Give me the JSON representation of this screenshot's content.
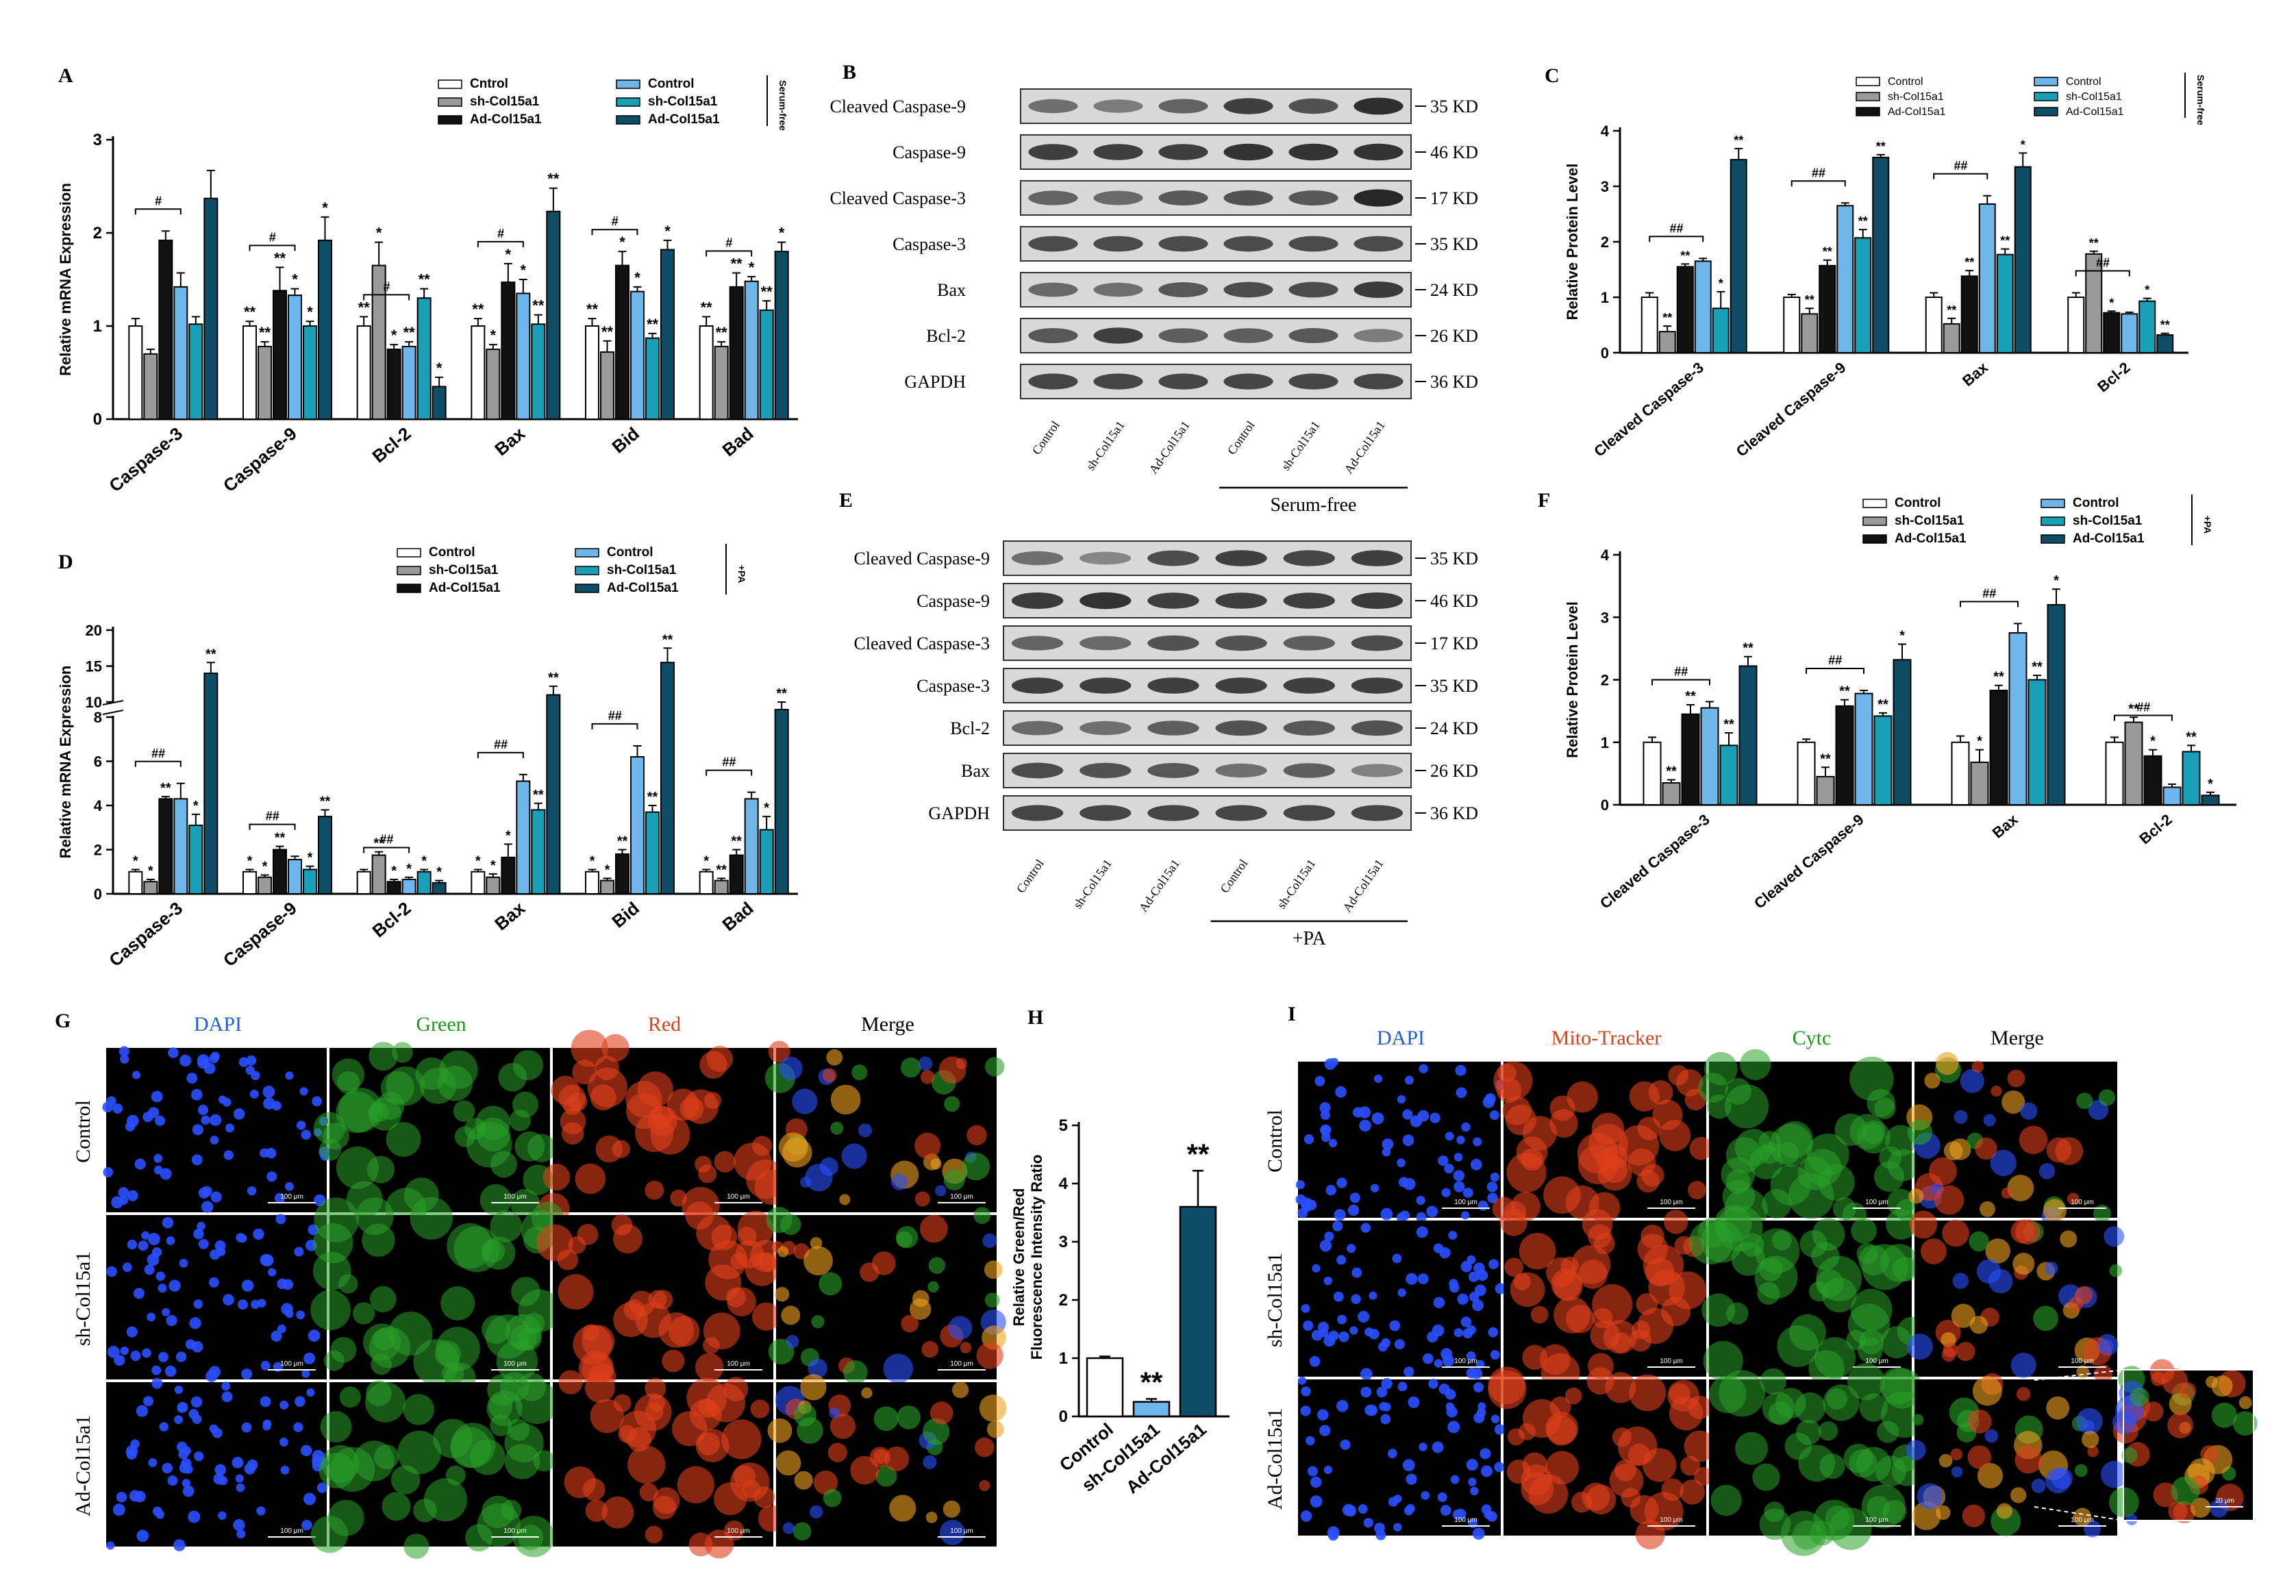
{
  "colors": {
    "white": "#ffffff",
    "gray": "#9a9a9a",
    "black": "#111111",
    "lightblue": "#6fb6ea",
    "teal": "#1aa0b6",
    "darkteal": "#0f4d66"
  },
  "chartA": {
    "letter": "A",
    "ylabel": "Relative mRNA Expression",
    "ylim": [
      0,
      3
    ],
    "yticks": [
      "0",
      "1",
      "2",
      "3"
    ],
    "legend": [
      "Cntrol",
      "sh-Col15a1",
      "Ad-Col15a1",
      "Control",
      "sh-Col15a1",
      "Ad-Col15a1"
    ],
    "bracket": "Serum-free"
  },
  "chartC": {
    "letter": "C",
    "ylabel": "Relative Protein Level",
    "ylim": [
      0,
      4
    ],
    "yticks": [
      "0",
      "1",
      "2",
      "3",
      "4"
    ],
    "legend": [
      "Control",
      "sh-Col15a1",
      "Ad-Col15a1",
      "Control",
      "sh-Col15a1",
      "Ad-Col15a1"
    ],
    "bracket": "Serum-free"
  },
  "chartD": {
    "letter": "D",
    "ylabel": "Relative mRNA Expression",
    "yticks_low": [
      "0",
      "2",
      "4",
      "6",
      "8"
    ],
    "yticks_high": [
      "10",
      "15",
      "20"
    ],
    "legend": [
      "Control",
      "sh-Col15a1",
      "Ad-Col15a1",
      "Control",
      "sh-Col15a1",
      "Ad-Col15a1"
    ],
    "bracket": "+PA"
  },
  "chartF": {
    "letter": "F",
    "ylabel": "Relative Protein Level",
    "ylim": [
      0,
      4
    ],
    "yticks": [
      "0",
      "1",
      "2",
      "3",
      "4"
    ],
    "legend": [
      "Control",
      "sh-Col15a1",
      "Ad-Col15a1",
      "Control",
      "sh-Col15a1",
      "Ad-Col15a1"
    ],
    "bracket": "+PA"
  },
  "chartH": {
    "letter": "H",
    "ylabel1": "Relative Green/Red",
    "ylabel2": "Fluorescence Intensity Ratio",
    "ylim": [
      0,
      5
    ],
    "yticks": [
      "0",
      "1",
      "2",
      "3",
      "4",
      "5"
    ]
  },
  "blotB": {
    "letter": "B",
    "rows": [
      "Cleaved Caspase-9",
      "Caspase-9",
      "Cleaved Caspase-3",
      "Caspase-3",
      "Bax",
      "Bcl-2",
      "GAPDH"
    ],
    "sizes": [
      "35 KD",
      "46 KD",
      "17 KD",
      "35 KD",
      "24 KD",
      "26 KD",
      "36 KD"
    ],
    "lanes": [
      "Control",
      "sh-Col15a1",
      "Ad-Col15a1",
      "Control",
      "sh-Col15a1",
      "Ad-Col15a1"
    ],
    "group": "Serum-free"
  },
  "blotE": {
    "letter": "E",
    "rows": [
      "Cleaved Caspase-9",
      "Caspase-9",
      "Cleaved Caspase-3",
      "Caspase-3",
      "Bcl-2",
      "Bax",
      "GAPDH"
    ],
    "sizes": [
      "35 KD",
      "46 KD",
      "17 KD",
      "35 KD",
      "24 KD",
      "26 KD",
      "36 KD"
    ],
    "lanes": [
      "Control",
      "sh-Col15a1",
      "Ad-Col15a1",
      "Control",
      "sh-Col15a1",
      "Ad-Col15a1"
    ],
    "group": "+PA"
  },
  "panelG": {
    "letter": "G",
    "columns": [
      "DAPI",
      "Green",
      "Red",
      "Merge"
    ],
    "rows": [
      "Control",
      "sh-Col15a1",
      "Ad-Col15a1"
    ],
    "scalebar": "100 μm"
  },
  "panelI": {
    "letter": "I",
    "columns": [
      "DAPI",
      "Mito-Tracker",
      "Cytc",
      "Merge"
    ],
    "rows": [
      "Control",
      "sh-Col15a1",
      "Ad-Col15a1"
    ],
    "scalebar": "100 μm",
    "inset_scalebar": "20 μm"
  },
  "chart_data": [
    {
      "type": "bar",
      "panel": "A",
      "categories": [
        "Caspase-3",
        "Caspase-9",
        "Bcl-2",
        "Bax",
        "Bid",
        "Bad"
      ],
      "ylabel": "Relative mRNA Expression",
      "ylim": [
        0,
        3
      ],
      "series": [
        {
          "name": "Cntrol",
          "values": [
            1.0,
            1.0,
            1.0,
            1.0,
            1.0,
            1.0
          ],
          "err": [
            0.08,
            0.05,
            0.1,
            0.08,
            0.08,
            0.1
          ]
        },
        {
          "name": "sh-Col15a1",
          "values": [
            0.7,
            0.78,
            1.65,
            0.75,
            0.72,
            0.78
          ],
          "err": [
            0.05,
            0.05,
            0.25,
            0.05,
            0.12,
            0.05
          ]
        },
        {
          "name": "Ad-Col15a1",
          "values": [
            1.92,
            1.38,
            0.75,
            1.47,
            1.65,
            1.42
          ],
          "err": [
            0.1,
            0.25,
            0.05,
            0.2,
            0.15,
            0.15
          ]
        },
        {
          "name": "Control",
          "values": [
            1.42,
            1.33,
            0.78,
            1.35,
            1.37,
            1.48
          ],
          "err": [
            0.15,
            0.07,
            0.05,
            0.15,
            0.05,
            0.05
          ]
        },
        {
          "name": "sh-Col15a1",
          "values": [
            1.02,
            1.0,
            1.3,
            1.02,
            0.87,
            1.17
          ],
          "err": [
            0.08,
            0.05,
            0.1,
            0.1,
            0.05,
            0.1
          ]
        },
        {
          "name": "Ad-Col15a1",
          "values": [
            2.37,
            1.92,
            0.35,
            2.23,
            1.82,
            1.8
          ],
          "err": [
            0.3,
            0.25,
            0.1,
            0.25,
            0.1,
            0.1
          ]
        }
      ],
      "sig": [
        [
          "",
          "**",
          "**",
          "**",
          "**",
          "**"
        ],
        [
          "",
          "**",
          "*",
          "*",
          "**",
          "**"
        ],
        [
          "",
          "**",
          "*",
          "*",
          "*",
          "**"
        ],
        [
          "",
          "*",
          "**",
          "*",
          "*",
          "*"
        ],
        [
          "",
          "*",
          "**",
          "**",
          "**",
          "**"
        ],
        [
          "",
          "*",
          "*",
          "**",
          "*",
          "*"
        ]
      ],
      "hash": [
        "#",
        "#",
        "#",
        "#",
        "#",
        "#"
      ]
    },
    {
      "type": "bar",
      "panel": "C",
      "categories": [
        "Cleaved Caspase-3",
        "Cleaved Caspase-9",
        "Bax",
        "Bcl-2"
      ],
      "ylabel": "Relative Protein Level",
      "ylim": [
        0,
        4
      ],
      "series": [
        {
          "name": "Control",
          "values": [
            1.0,
            1.0,
            1.0,
            1.0
          ],
          "err": [
            0.08,
            0.05,
            0.08,
            0.08
          ]
        },
        {
          "name": "sh-Col15a1",
          "values": [
            0.38,
            0.7,
            0.52,
            1.78
          ],
          "err": [
            0.1,
            0.1,
            0.1,
            0.05
          ]
        },
        {
          "name": "Ad-Col15a1",
          "values": [
            1.55,
            1.57,
            1.38,
            0.72
          ],
          "err": [
            0.05,
            0.1,
            0.1,
            0.03
          ]
        },
        {
          "name": "Control",
          "values": [
            1.65,
            2.65,
            2.68,
            0.7
          ],
          "err": [
            0.05,
            0.05,
            0.15,
            0.03
          ]
        },
        {
          "name": "sh-Col15a1",
          "values": [
            0.8,
            2.07,
            1.77,
            0.93
          ],
          "err": [
            0.3,
            0.15,
            0.1,
            0.05
          ]
        },
        {
          "name": "Ad-Col15a1",
          "values": [
            3.48,
            3.52,
            3.35,
            0.32
          ],
          "err": [
            0.2,
            0.05,
            0.25,
            0.03
          ]
        }
      ],
      "sig": [
        [
          "",
          "",
          "",
          ""
        ],
        [
          "**",
          "**",
          "**",
          "**"
        ],
        [
          "**",
          "**",
          "**",
          "*"
        ],
        [
          "",
          "",
          "",
          ""
        ],
        [
          "*",
          "**",
          "**",
          "*"
        ],
        [
          "**",
          "**",
          "*",
          "**"
        ]
      ],
      "hash": [
        "##",
        "##",
        "##",
        "##"
      ]
    },
    {
      "type": "bar",
      "panel": "D",
      "categories": [
        "Caspase-3",
        "Caspase-9",
        "Bcl-2",
        "Bax",
        "Bid",
        "Bad"
      ],
      "ylabel": "Relative mRNA Expression",
      "ylim": [
        0,
        20
      ],
      "axis_break": [
        8,
        10
      ],
      "series": [
        {
          "name": "Control",
          "values": [
            1.0,
            1.0,
            1.0,
            1.0,
            1.0,
            1.0
          ],
          "err": [
            0.1,
            0.1,
            0.1,
            0.1,
            0.1,
            0.1
          ]
        },
        {
          "name": "sh-Col15a1",
          "values": [
            0.55,
            0.75,
            1.75,
            0.75,
            0.6,
            0.6
          ],
          "err": [
            0.1,
            0.1,
            0.15,
            0.15,
            0.1,
            0.1
          ]
        },
        {
          "name": "Ad-Col15a1",
          "values": [
            4.3,
            2.0,
            0.55,
            1.65,
            1.8,
            1.75
          ],
          "err": [
            0.1,
            0.15,
            0.1,
            0.6,
            0.2,
            0.25
          ]
        },
        {
          "name": "Control",
          "values": [
            4.3,
            1.55,
            0.65,
            5.1,
            6.2,
            4.3
          ],
          "err": [
            0.7,
            0.15,
            0.1,
            0.3,
            0.5,
            0.3
          ]
        },
        {
          "name": "sh-Col15a1",
          "values": [
            3.1,
            1.1,
            1.0,
            3.8,
            3.7,
            2.9
          ],
          "err": [
            0.5,
            0.15,
            0.1,
            0.3,
            0.3,
            0.6
          ]
        },
        {
          "name": "Ad-Col15a1",
          "values": [
            14.0,
            3.5,
            0.5,
            11.0,
            15.5,
            9.5
          ],
          "err": [
            1.5,
            0.3,
            0.1,
            1.2,
            2.0,
            0.5
          ]
        }
      ],
      "sig": [
        [
          "*",
          "*",
          "",
          "*",
          "*",
          "*"
        ],
        [
          "*",
          "*",
          "**",
          "*",
          "*",
          "**"
        ],
        [
          "**",
          "**",
          "*",
          "*",
          "**",
          "**"
        ],
        [
          "",
          "",
          "*",
          "",
          "",
          ""
        ],
        [
          "*",
          "*",
          "*",
          "**",
          "**",
          "*"
        ],
        [
          "**",
          "**",
          "*",
          "**",
          "**",
          "**"
        ]
      ],
      "hash": [
        "##",
        "##",
        "##",
        "##",
        "##",
        "##"
      ]
    },
    {
      "type": "bar",
      "panel": "F",
      "categories": [
        "Cleaved Caspase-3",
        "Cleaved Caspase-9",
        "Bax",
        "Bcl-2"
      ],
      "ylabel": "Relative Protein Level",
      "ylim": [
        0,
        4
      ],
      "series": [
        {
          "name": "Control",
          "values": [
            1.0,
            1.0,
            1.0,
            1.0
          ],
          "err": [
            0.08,
            0.05,
            0.1,
            0.08
          ]
        },
        {
          "name": "sh-Col15a1",
          "values": [
            0.35,
            0.45,
            0.68,
            1.32
          ],
          "err": [
            0.05,
            0.15,
            0.2,
            0.08
          ]
        },
        {
          "name": "Ad-Col15a1",
          "values": [
            1.45,
            1.58,
            1.83,
            0.78
          ],
          "err": [
            0.15,
            0.1,
            0.08,
            0.1
          ]
        },
        {
          "name": "Control",
          "values": [
            1.55,
            1.78,
            2.75,
            0.28
          ],
          "err": [
            0.1,
            0.05,
            0.15,
            0.05
          ]
        },
        {
          "name": "sh-Col15a1",
          "values": [
            0.95,
            1.42,
            2.0,
            0.85
          ],
          "err": [
            0.2,
            0.05,
            0.07,
            0.1
          ]
        },
        {
          "name": "Ad-Col15a1",
          "values": [
            2.22,
            2.32,
            3.2,
            0.15
          ],
          "err": [
            0.15,
            0.25,
            0.25,
            0.05
          ]
        }
      ],
      "sig": [
        [
          "",
          "",
          "",
          ""
        ],
        [
          "**",
          "**",
          "*",
          "**"
        ],
        [
          "**",
          "**",
          "**",
          "*"
        ],
        [
          "",
          "",
          "",
          ""
        ],
        [
          "**",
          "**",
          "**",
          "**"
        ],
        [
          "**",
          "*",
          "*",
          "*"
        ]
      ],
      "hash": [
        "##",
        "##",
        "##",
        "##"
      ]
    },
    {
      "type": "bar",
      "panel": "H",
      "categories": [
        "Control",
        "sh-Col15a1",
        "Ad-Col15a1"
      ],
      "ylabel": "Relative Green/Red Fluorescence Intensity Ratio",
      "ylim": [
        0,
        5
      ],
      "values": [
        1.0,
        0.25,
        3.6
      ],
      "err": [
        0.03,
        0.05,
        0.62
      ],
      "sig": [
        "",
        "**",
        "**"
      ]
    }
  ]
}
